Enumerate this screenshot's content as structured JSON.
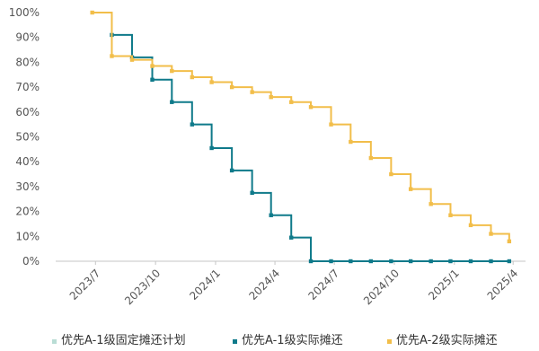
{
  "chart_data": {
    "type": "line",
    "title": "",
    "xlabel": "",
    "ylabel": "",
    "x_tick_labels": [
      "2023/7",
      "2023/10",
      "2024/1",
      "2024/4",
      "2024/7",
      "2024/10",
      "2025/1",
      "2025/4"
    ],
    "y_tick_labels": [
      "0%",
      "10%",
      "20%",
      "30%",
      "40%",
      "50%",
      "60%",
      "70%",
      "80%",
      "90%",
      "100%"
    ],
    "xlim": [
      "2023-05-01",
      "2025-04-20"
    ],
    "ylim": [
      0,
      100
    ],
    "grid": false,
    "legend_position": "bottom",
    "series": [
      {
        "name": "优先A-1级固定摊还计划",
        "color": "#B9DDD5",
        "style": "step",
        "points": []
      },
      {
        "name": "优先A-1级实际摊还",
        "color": "#0F7A8A",
        "style": "step",
        "points": [
          [
            "2023-07-26",
            91
          ],
          [
            "2023-08-26",
            82
          ],
          [
            "2023-09-26",
            73
          ],
          [
            "2023-10-26",
            64
          ],
          [
            "2023-11-26",
            55
          ],
          [
            "2023-12-26",
            45.5
          ],
          [
            "2024-01-26",
            36.5
          ],
          [
            "2024-02-26",
            27.5
          ],
          [
            "2024-03-26",
            18.5
          ],
          [
            "2024-04-26",
            9.5
          ],
          [
            "2024-05-26",
            0
          ],
          [
            "2024-06-26",
            0
          ],
          [
            "2024-07-26",
            0
          ],
          [
            "2024-08-26",
            0
          ],
          [
            "2024-09-26",
            0
          ],
          [
            "2024-10-26",
            0
          ],
          [
            "2024-11-26",
            0
          ],
          [
            "2024-12-26",
            0
          ],
          [
            "2025-01-26",
            0
          ],
          [
            "2025-02-26",
            0
          ],
          [
            "2025-03-26",
            0
          ]
        ]
      },
      {
        "name": "优先A-2级实际摊还",
        "color": "#F2BE4A",
        "style": "step",
        "points": [
          [
            "2023-06-26",
            100
          ],
          [
            "2023-07-26",
            82.5
          ],
          [
            "2023-08-26",
            81
          ],
          [
            "2023-09-26",
            78.5
          ],
          [
            "2023-10-26",
            76.5
          ],
          [
            "2023-11-26",
            74
          ],
          [
            "2023-12-26",
            72
          ],
          [
            "2024-01-26",
            70
          ],
          [
            "2024-02-26",
            68
          ],
          [
            "2024-03-26",
            66
          ],
          [
            "2024-04-26",
            64
          ],
          [
            "2024-05-26",
            62
          ],
          [
            "2024-06-26",
            55
          ],
          [
            "2024-07-26",
            48
          ],
          [
            "2024-08-26",
            41.5
          ],
          [
            "2024-09-26",
            35
          ],
          [
            "2024-10-26",
            29
          ],
          [
            "2024-11-26",
            23
          ],
          [
            "2024-12-26",
            18.5
          ],
          [
            "2025-01-26",
            14.5
          ],
          [
            "2025-02-26",
            11
          ],
          [
            "2025-03-26",
            8
          ]
        ]
      }
    ]
  }
}
